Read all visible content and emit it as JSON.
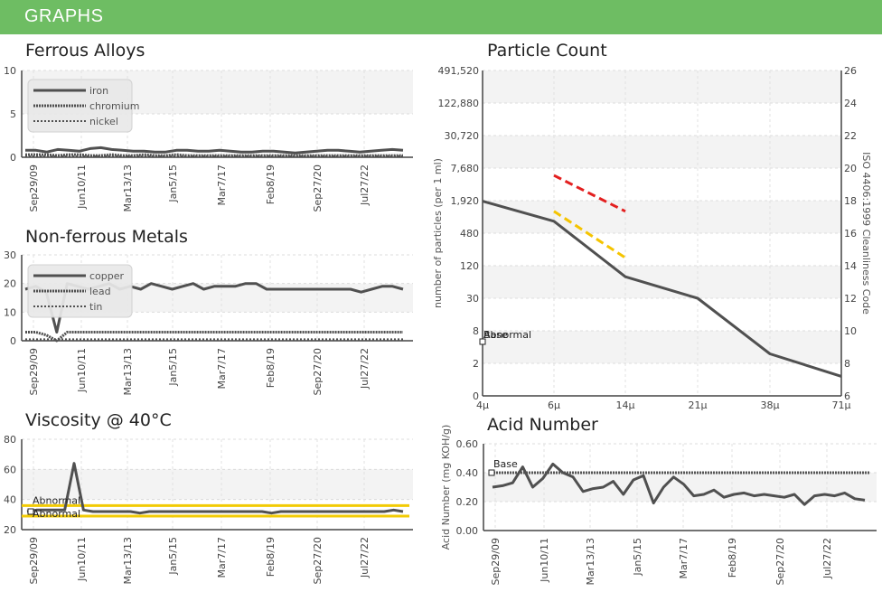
{
  "header": {
    "title": "GRAPHS"
  },
  "chart_data": [
    {
      "id": "ferrous",
      "type": "line",
      "title": "Ferrous Alloys",
      "ylim": [
        0,
        10
      ],
      "yticks": [
        "0",
        "5",
        "10"
      ],
      "xticks": [
        "Sep29/09",
        "Jun10/11",
        "Mar13/13",
        "Jan5/15",
        "Mar7/17",
        "Feb8/19",
        "Sep27/20",
        "Jul27/22"
      ],
      "legend": [
        "iron",
        "chromium",
        "nickel"
      ],
      "series": [
        {
          "name": "iron",
          "values": [
            0.8,
            0.8,
            0.6,
            0.9,
            0.8,
            0.7,
            1.0,
            1.1,
            0.9,
            0.8,
            0.7,
            0.7,
            0.6,
            0.6,
            0.8,
            0.8,
            0.7,
            0.7,
            0.8,
            0.7,
            0.6,
            0.6,
            0.7,
            0.7,
            0.6,
            0.5,
            0.6,
            0.7,
            0.8,
            0.8,
            0.7,
            0.6,
            0.7,
            0.8,
            0.9,
            0.8
          ]
        },
        {
          "name": "chromium",
          "values": [
            0.3,
            0.3,
            0.3,
            0.2,
            0.3,
            0.3,
            0.2,
            0.2,
            0.3,
            0.2,
            0.2,
            0.3,
            0.2,
            0.2,
            0.3,
            0.2,
            0.2,
            0.2,
            0.2,
            0.2,
            0.2,
            0.2,
            0.2,
            0.2,
            0.2,
            0.2,
            0.2,
            0.2,
            0.2,
            0.2,
            0.2,
            0.2,
            0.2,
            0.2,
            0.2,
            0.2
          ]
        },
        {
          "name": "nickel",
          "values": [
            0.1,
            0.1,
            0.1,
            0.1,
            0.1,
            0.1,
            0.1,
            0.1,
            0.1,
            0.1,
            0.1,
            0.1,
            0.1,
            0.1,
            0.1,
            0.1,
            0.1,
            0.1,
            0.1,
            0.1,
            0.1,
            0.1,
            0.1,
            0.1,
            0.1,
            0.1,
            0.1,
            0.1,
            0.1,
            0.1,
            0.1,
            0.1,
            0.1,
            0.1,
            0.1,
            0.1
          ]
        }
      ]
    },
    {
      "id": "nonferrous",
      "type": "line",
      "title": "Non-ferrous Metals",
      "ylim": [
        0,
        30
      ],
      "yticks": [
        "0",
        "10",
        "20",
        "30"
      ],
      "xticks": [
        "Sep29/09",
        "Jun10/11",
        "Mar13/13",
        "Jan5/15",
        "Mar7/17",
        "Feb8/19",
        "Sep27/20",
        "Jul27/22"
      ],
      "legend": [
        "copper",
        "lead",
        "tin"
      ],
      "series": [
        {
          "name": "copper",
          "values": [
            18,
            19,
            17,
            3,
            20,
            19,
            18,
            19,
            20,
            18,
            19,
            18,
            20,
            19,
            18,
            19,
            20,
            18,
            19,
            19,
            19,
            20,
            20,
            18,
            18,
            18,
            18,
            18,
            18,
            18,
            18,
            18,
            17,
            18,
            19,
            19,
            18
          ]
        },
        {
          "name": "lead",
          "values": [
            3,
            3,
            2,
            0,
            3,
            3,
            3,
            3,
            3,
            3,
            3,
            3,
            3,
            3,
            3,
            3,
            3,
            3,
            3,
            3,
            3,
            3,
            3,
            3,
            3,
            3,
            3,
            3,
            3,
            3,
            3,
            3,
            3,
            3,
            3,
            3,
            3
          ]
        },
        {
          "name": "tin",
          "values": [
            0.5,
            0.5,
            0.5,
            0.5,
            0.5,
            0.5,
            0.5,
            0.5,
            0.5,
            0.5,
            0.5,
            0.5,
            0.5,
            0.5,
            0.5,
            0.5,
            0.5,
            0.5,
            0.5,
            0.5,
            0.5,
            0.5,
            0.5,
            0.5,
            0.5,
            0.5,
            0.5,
            0.5,
            0.5,
            0.5,
            0.5,
            0.5,
            0.5,
            0.5,
            0.5,
            0.5,
            0.5
          ]
        }
      ]
    },
    {
      "id": "viscosity",
      "type": "line",
      "title": "Viscosity @ 40°C",
      "ylim": [
        20,
        80
      ],
      "yticks": [
        "20",
        "40",
        "60",
        "80"
      ],
      "xticks": [
        "Sep29/09",
        "Jun10/11",
        "Mar13/13",
        "Jan5/15",
        "Mar7/17",
        "Feb8/19",
        "Sep27/20",
        "Jul27/22"
      ],
      "limits": [
        {
          "value": 36,
          "color": "#f2cb05"
        },
        {
          "value": 29,
          "color": "#f2cb05"
        }
      ],
      "annotations": [
        "Abnormal",
        "Abnormal"
      ],
      "series": [
        {
          "name": "",
          "values": [
            32,
            33,
            33,
            33,
            33,
            64,
            33,
            32,
            32,
            32,
            32,
            32,
            31,
            32,
            32,
            32,
            32,
            32,
            32,
            32,
            32,
            32,
            32,
            32,
            32,
            32,
            31,
            32,
            32,
            32,
            32,
            32,
            32,
            32,
            32,
            32,
            32,
            32,
            32,
            33,
            32
          ]
        }
      ]
    },
    {
      "id": "particle",
      "type": "line",
      "title": "Particle Count",
      "ylabel": "number of particles (per 1 ml)",
      "ylabel_right": "ISO 4406:1999 Cleanliness Code",
      "xticks": [
        "4μ",
        "6μ",
        "14μ",
        "21μ",
        "38μ",
        "71μ"
      ],
      "yticks": [
        "0",
        "2",
        "8",
        "30",
        "120",
        "480",
        "1,920",
        "7,680",
        "30,720",
        "122,880",
        "491,520"
      ],
      "yticks_right": [
        "6",
        "8",
        "10",
        "12",
        "14",
        "16",
        "18",
        "20",
        "22",
        "24",
        "26"
      ],
      "annotations": [
        "Base",
        "Abnormal"
      ],
      "series": [
        {
          "name": "",
          "values": [
            2000,
            850,
            80,
            32,
            3,
            1.2
          ]
        }
      ],
      "limit_lines": [
        {
          "color": "#e31f1f",
          "x": [
            "6μ",
            "14μ"
          ],
          "values": [
            6000,
            1300
          ]
        },
        {
          "color": "#f5c400",
          "x": [
            "6μ",
            "14μ"
          ],
          "values": [
            1300,
            180
          ]
        }
      ]
    },
    {
      "id": "acid",
      "type": "line",
      "title": "Acid Number",
      "ylabel": "Acid Number (mg KOH/g)",
      "ylim": [
        0,
        0.6
      ],
      "yticks": [
        "0.00",
        "0.20",
        "0.40",
        "0.60"
      ],
      "xticks": [
        "Sep29/09",
        "Jun10/11",
        "Mar13/13",
        "Jan5/15",
        "Mar7/17",
        "Feb8/19",
        "Sep27/20",
        "Jul27/22"
      ],
      "base_value": 0.4,
      "annotations": [
        "Base"
      ],
      "series": [
        {
          "name": "",
          "values": [
            0.3,
            0.31,
            0.33,
            0.44,
            0.3,
            0.36,
            0.46,
            0.4,
            0.37,
            0.27,
            0.29,
            0.3,
            0.34,
            0.25,
            0.35,
            0.38,
            0.19,
            0.3,
            0.37,
            0.32,
            0.24,
            0.25,
            0.28,
            0.23,
            0.25,
            0.26,
            0.24,
            0.25,
            0.24,
            0.23,
            0.25,
            0.18,
            0.24,
            0.25,
            0.24,
            0.26,
            0.22,
            0.21
          ]
        }
      ]
    }
  ]
}
